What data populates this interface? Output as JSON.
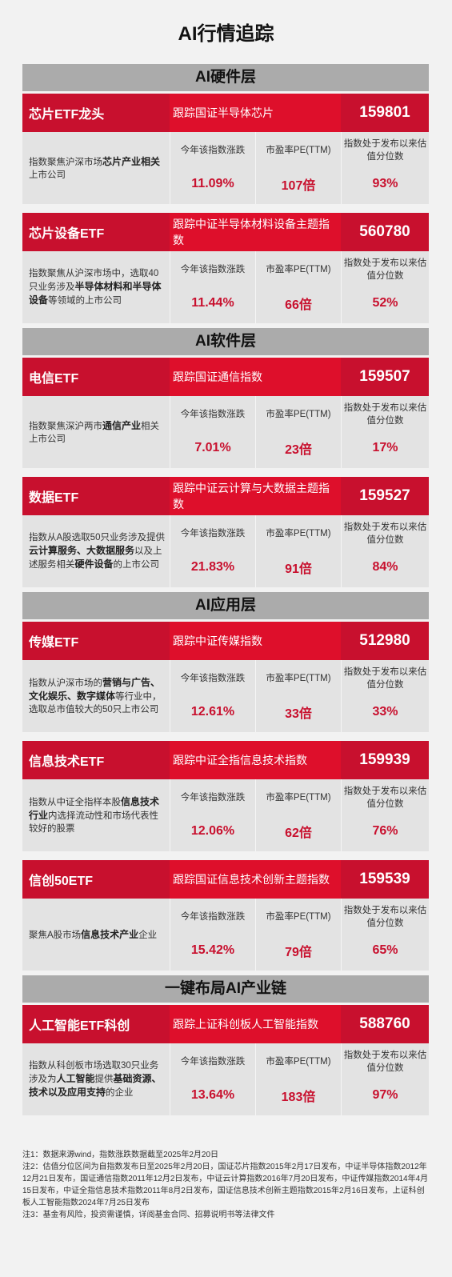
{
  "title": "AI行情追踪",
  "metric_labels": {
    "change": "今年该指数涨跌",
    "pe": "市盈率PE(TTM)",
    "pct": "指数处于发布以来估值分位数"
  },
  "sections": [
    {
      "label": "AI硬件层",
      "cards": [
        {
          "name": "芯片ETF龙头",
          "track": "跟踪国证半导体芯片",
          "code": "159801",
          "desc": [
            {
              "t": "指数聚焦沪深市场",
              "b": false
            },
            {
              "t": "芯片产业相关",
              "b": true
            },
            {
              "t": "上市公司",
              "b": false
            }
          ],
          "change": "11.09%",
          "pe": "107倍",
          "pct": "93%"
        },
        {
          "name": "芯片设备ETF",
          "track": "跟踪中证半导体材料设备主题指数",
          "code": "560780",
          "desc": [
            {
              "t": "指数聚焦从沪深市场中，选取40只业务涉及",
              "b": false
            },
            {
              "t": "半导体材料和半导体设备",
              "b": true
            },
            {
              "t": "等领域的上市公司",
              "b": false
            }
          ],
          "change": "11.44%",
          "pe": "66倍",
          "pct": "52%"
        }
      ]
    },
    {
      "label": "AI软件层",
      "cards": [
        {
          "name": "电信ETF",
          "track": "跟踪国证通信指数",
          "code": "159507",
          "desc": [
            {
              "t": "指数聚焦深沪两市",
              "b": false
            },
            {
              "t": "通信产业",
              "b": true
            },
            {
              "t": "相关上市公司",
              "b": false
            }
          ],
          "change": "7.01%",
          "pe": "23倍",
          "pct": "17%"
        },
        {
          "name": "数据ETF",
          "track": "跟踪中证云计算与大数据主题指数",
          "code": "159527",
          "desc": [
            {
              "t": "指数从A股选取50只业务涉及提供",
              "b": false
            },
            {
              "t": "云计算服务、大数据服务",
              "b": true
            },
            {
              "t": "以及上述服务相关",
              "b": false
            },
            {
              "t": "硬件设备",
              "b": true
            },
            {
              "t": "的上市公司",
              "b": false
            }
          ],
          "change": "21.83%",
          "pe": "91倍",
          "pct": "84%"
        }
      ]
    },
    {
      "label": "AI应用层",
      "cards": [
        {
          "name": "传媒ETF",
          "track": "跟踪中证传媒指数",
          "code": "512980",
          "desc": [
            {
              "t": "指数从沪深市场的",
              "b": false
            },
            {
              "t": "营销与广告、文化娱乐、数字媒体",
              "b": true
            },
            {
              "t": "等行业中，选取总市值较大的50只上市公司",
              "b": false
            }
          ],
          "change": "12.61%",
          "pe": "33倍",
          "pct": "33%"
        },
        {
          "name": "信息技术ETF",
          "track": "跟踪中证全指信息技术指数",
          "code": "159939",
          "desc": [
            {
              "t": "指数从中证全指样本股",
              "b": false
            },
            {
              "t": "信息技术行业",
              "b": true
            },
            {
              "t": "内选择流动性和市场代表性较好的股票",
              "b": false
            }
          ],
          "change": "12.06%",
          "pe": "62倍",
          "pct": "76%"
        },
        {
          "name": "信创50ETF",
          "track": "跟踪国证信息技术创新主题指数",
          "code": "159539",
          "desc": [
            {
              "t": "聚焦A股市场",
              "b": false
            },
            {
              "t": "信息技术产业",
              "b": true
            },
            {
              "t": "企业",
              "b": false
            }
          ],
          "change": "15.42%",
          "pe": "79倍",
          "pct": "65%"
        }
      ]
    },
    {
      "label": "一键布局AI产业链",
      "cards": [
        {
          "name": "人工智能ETF科创",
          "track": "跟踪上证科创板人工智能指数",
          "code": "588760",
          "desc": [
            {
              "t": "指数从科创板市场选取30只业务涉及为",
              "b": false
            },
            {
              "t": "人工智能",
              "b": true
            },
            {
              "t": "提供",
              "b": false
            },
            {
              "t": "基础资源、技术以及应用支持",
              "b": true
            },
            {
              "t": "的企业",
              "b": false
            }
          ],
          "change": "13.64%",
          "pe": "183倍",
          "pct": "97%"
        }
      ]
    }
  ],
  "notes": [
    "注1：数据来源wind，指数涨跌数据截至2025年2月20日",
    "注2：估值分位区间为自指数发布日至2025年2月20日，国证芯片指数2015年2月17日发布，中证半导体指数2012年12月21日发布，国证通信指数2011年12月2日发布，中证云计算指数2016年7月20日发布，中证传媒指数2014年4月15日发布，中证全指信息技术指数2011年8月2日发布，国证信息技术创新主题指数2015年2月16日发布，上证科创板人工智能指数2024年7月25日发布",
    "注3：基金有风险，投资需谨慎，详阅基金合同、招募说明书等法律文件"
  ]
}
